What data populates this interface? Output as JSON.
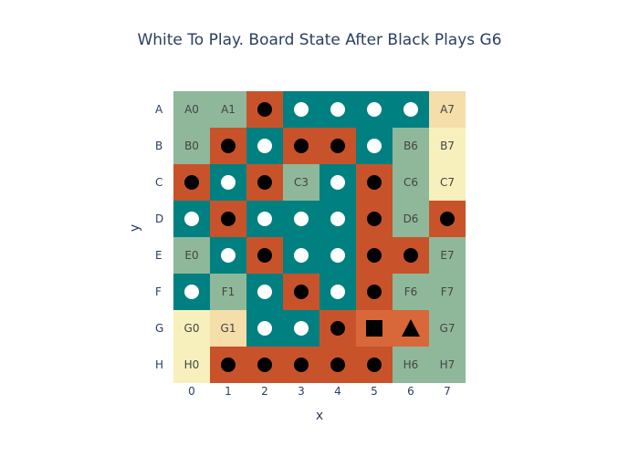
{
  "title": "White To Play. Board State After Black Plays G6",
  "axes": {
    "xlabel": "x",
    "ylabel": "y",
    "rows": [
      "A",
      "B",
      "C",
      "D",
      "E",
      "F",
      "G",
      "H"
    ],
    "cols": [
      "0",
      "1",
      "2",
      "3",
      "4",
      "5",
      "6",
      "7"
    ]
  },
  "colors": {
    "teal": "#008080",
    "orange": "#c8532a",
    "green": "#8fb89a",
    "cream": "#f7f0bc",
    "tan": "#f5deaa",
    "highlight": "#d8673a"
  },
  "board": [
    [
      {
        "bg": "green",
        "label": "A0"
      },
      {
        "bg": "green",
        "label": "A1"
      },
      {
        "bg": "orange",
        "stone": "black"
      },
      {
        "bg": "teal",
        "stone": "white"
      },
      {
        "bg": "teal",
        "stone": "white"
      },
      {
        "bg": "teal",
        "stone": "white"
      },
      {
        "bg": "teal",
        "stone": "white"
      },
      {
        "bg": "tan",
        "label": "A7"
      }
    ],
    [
      {
        "bg": "green",
        "label": "B0"
      },
      {
        "bg": "orange",
        "stone": "black"
      },
      {
        "bg": "teal",
        "stone": "white"
      },
      {
        "bg": "orange",
        "stone": "black"
      },
      {
        "bg": "orange",
        "stone": "black"
      },
      {
        "bg": "teal",
        "stone": "white"
      },
      {
        "bg": "green",
        "label": "B6"
      },
      {
        "bg": "cream",
        "label": "B7"
      }
    ],
    [
      {
        "bg": "orange",
        "stone": "black"
      },
      {
        "bg": "teal",
        "stone": "white"
      },
      {
        "bg": "orange",
        "stone": "black"
      },
      {
        "bg": "green",
        "label": "C3"
      },
      {
        "bg": "teal",
        "stone": "white"
      },
      {
        "bg": "orange",
        "stone": "black"
      },
      {
        "bg": "green",
        "label": "C6"
      },
      {
        "bg": "cream",
        "label": "C7"
      }
    ],
    [
      {
        "bg": "teal",
        "stone": "white"
      },
      {
        "bg": "orange",
        "stone": "black"
      },
      {
        "bg": "teal",
        "stone": "white"
      },
      {
        "bg": "teal",
        "stone": "white"
      },
      {
        "bg": "teal",
        "stone": "white"
      },
      {
        "bg": "orange",
        "stone": "black"
      },
      {
        "bg": "green",
        "label": "D6"
      },
      {
        "bg": "orange",
        "stone": "black"
      }
    ],
    [
      {
        "bg": "green",
        "label": "E0"
      },
      {
        "bg": "teal",
        "stone": "white"
      },
      {
        "bg": "orange",
        "stone": "black"
      },
      {
        "bg": "teal",
        "stone": "white"
      },
      {
        "bg": "teal",
        "stone": "white"
      },
      {
        "bg": "orange",
        "stone": "black"
      },
      {
        "bg": "orange",
        "stone": "black"
      },
      {
        "bg": "green",
        "label": "E7"
      }
    ],
    [
      {
        "bg": "teal",
        "stone": "white"
      },
      {
        "bg": "green",
        "label": "F1"
      },
      {
        "bg": "teal",
        "stone": "white"
      },
      {
        "bg": "orange",
        "stone": "black"
      },
      {
        "bg": "teal",
        "stone": "white"
      },
      {
        "bg": "orange",
        "stone": "black"
      },
      {
        "bg": "green",
        "label": "F6"
      },
      {
        "bg": "green",
        "label": "F7"
      }
    ],
    [
      {
        "bg": "cream",
        "label": "G0"
      },
      {
        "bg": "tan",
        "label": "G1"
      },
      {
        "bg": "teal",
        "stone": "white"
      },
      {
        "bg": "teal",
        "stone": "white"
      },
      {
        "bg": "orange",
        "stone": "black"
      },
      {
        "bg": "highlight",
        "marker": "square"
      },
      {
        "bg": "highlight",
        "marker": "triangle"
      },
      {
        "bg": "green",
        "label": "G7"
      }
    ],
    [
      {
        "bg": "cream",
        "label": "H0"
      },
      {
        "bg": "orange",
        "stone": "black"
      },
      {
        "bg": "orange",
        "stone": "black"
      },
      {
        "bg": "orange",
        "stone": "black"
      },
      {
        "bg": "orange",
        "stone": "black"
      },
      {
        "bg": "orange",
        "stone": "black"
      },
      {
        "bg": "green",
        "label": "H6"
      },
      {
        "bg": "green",
        "label": "H7"
      }
    ]
  ]
}
